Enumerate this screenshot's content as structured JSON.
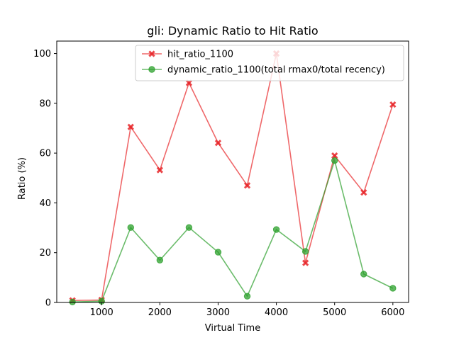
{
  "chart_data": {
    "type": "line",
    "title": "gli: Dynamic Ratio to Hit Ratio",
    "xlabel": "Virtual Time",
    "ylabel": "Ratio (%)",
    "xlim": [
      230,
      6270
    ],
    "ylim": [
      0,
      105
    ],
    "xticks": [
      1000,
      2000,
      3000,
      4000,
      5000,
      6000
    ],
    "yticks": [
      0,
      20,
      40,
      60,
      80,
      100
    ],
    "grid": false,
    "legend_position": "top-center",
    "x": [
      500,
      1000,
      1500,
      2000,
      2500,
      3000,
      3500,
      4000,
      4500,
      5000,
      5500,
      6000
    ],
    "series": [
      {
        "name": "hit_ratio_1100",
        "color": "#e8282b",
        "marker": "x",
        "values": [
          0.8,
          1.0,
          70.5,
          53.2,
          88.2,
          64.1,
          47.0,
          100.0,
          15.9,
          59.0,
          44.2,
          79.5
        ]
      },
      {
        "name": "dynamic_ratio_1100(total rmax0/total recency)",
        "color": "#2ca02c",
        "marker": "o",
        "values": [
          0.2,
          0.5,
          30.1,
          17.0,
          30.1,
          20.2,
          2.5,
          29.3,
          20.5,
          57.0,
          11.4,
          5.7
        ]
      }
    ]
  }
}
